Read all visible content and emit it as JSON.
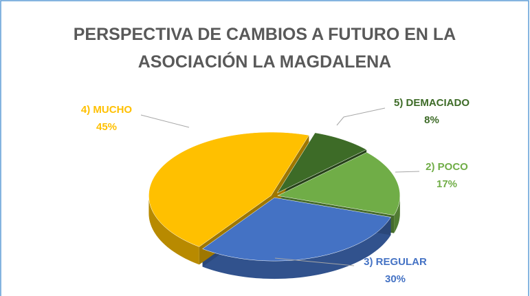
{
  "chart_data": {
    "type": "pie3d",
    "title": "PERSPECTIVA DE CAMBIOS A FUTURO EN LA ASOCIACIÓN LA MAGDALENA",
    "categories": [
      "5) DEMACIADO",
      "2) POCO",
      "3) REGULAR",
      "4) MUCHO"
    ],
    "values": [
      8,
      17,
      30,
      45
    ],
    "value_labels": [
      "8%",
      "17%",
      "30%",
      "45%"
    ],
    "colors": [
      "#3d6b27",
      "#70ad47",
      "#4472c4",
      "#ffc000"
    ]
  }
}
